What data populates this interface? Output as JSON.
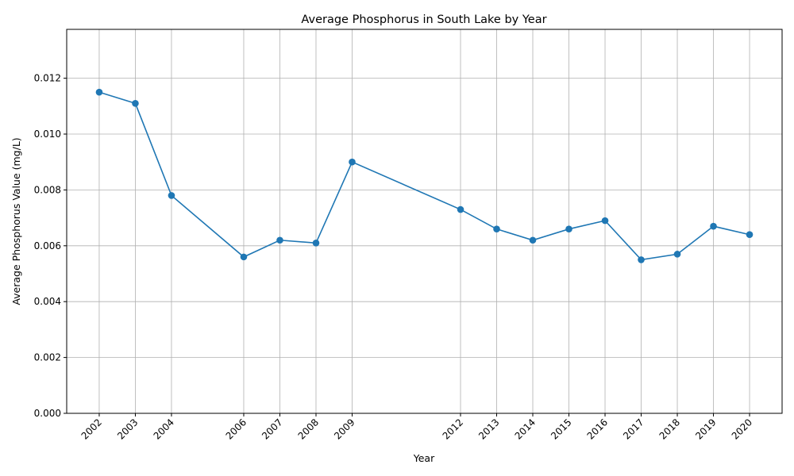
{
  "chart_data": {
    "type": "line",
    "title": "Average Phosphorus in South Lake by Year",
    "xlabel": "Year",
    "ylabel": "Average Phosphorus Value (mg/L)",
    "x": [
      2002,
      2003,
      2004,
      2006,
      2007,
      2008,
      2009,
      2012,
      2013,
      2014,
      2015,
      2016,
      2017,
      2018,
      2019,
      2020
    ],
    "x_tick_labels": [
      "2002",
      "2003",
      "2004",
      "2006",
      "2007",
      "2008",
      "2009",
      "2012",
      "2013",
      "2014",
      "2015",
      "2016",
      "2017",
      "2018",
      "2019",
      "2020"
    ],
    "y": [
      0.0115,
      0.0111,
      0.0078,
      0.0056,
      0.0062,
      0.0061,
      0.009,
      0.0073,
      0.0066,
      0.0062,
      0.0066,
      0.0069,
      0.0055,
      0.0057,
      0.0067,
      0.0064
    ],
    "y_ticks": [
      0,
      0.002,
      0.004,
      0.006,
      0.008,
      0.01,
      0.012
    ],
    "y_tick_labels": [
      "0.000",
      "0.002",
      "0.004",
      "0.006",
      "0.008",
      "0.010",
      "0.012"
    ],
    "xlim": [
      2001.1,
      2020.9
    ],
    "ylim": [
      0,
      0.01375
    ],
    "grid": true,
    "marker": "circle",
    "line_color": "#1f77b4"
  }
}
